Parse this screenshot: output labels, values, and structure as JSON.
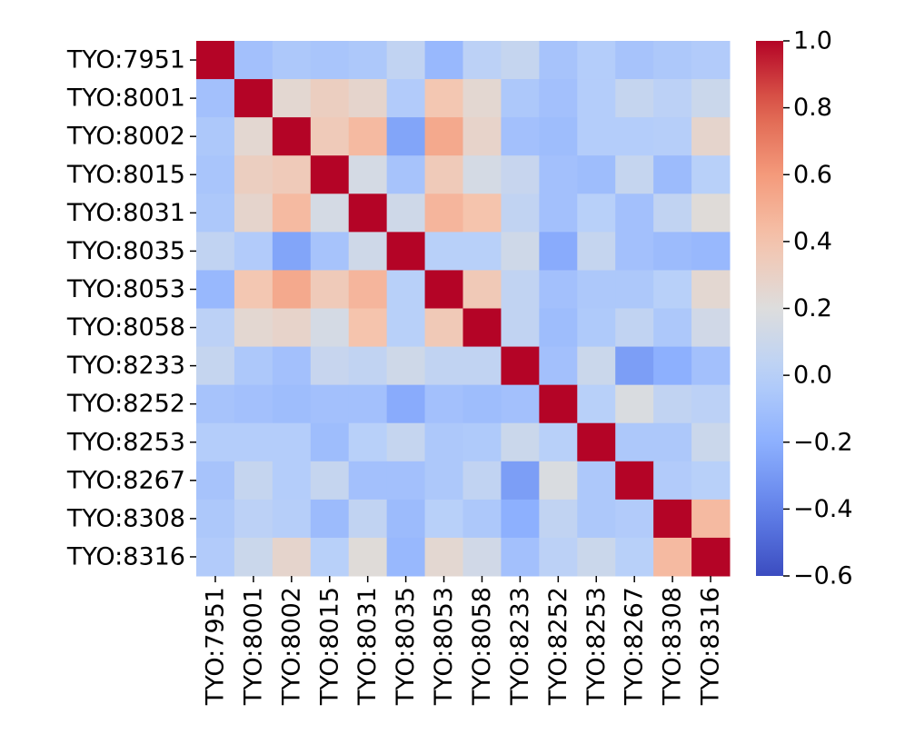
{
  "chart_data": {
    "type": "heatmap",
    "title": "",
    "xlabel": "",
    "ylabel": "",
    "categories_x": [
      "TYO:7951",
      "TYO:8001",
      "TYO:8002",
      "TYO:8015",
      "TYO:8031",
      "TYO:8035",
      "TYO:8053",
      "TYO:8058",
      "TYO:8233",
      "TYO:8252",
      "TYO:8253",
      "TYO:8267",
      "TYO:8308",
      "TYO:8316"
    ],
    "categories_y": [
      "TYO:7951",
      "TYO:8001",
      "TYO:8002",
      "TYO:8015",
      "TYO:8031",
      "TYO:8035",
      "TYO:8053",
      "TYO:8058",
      "TYO:8233",
      "TYO:8252",
      "TYO:8253",
      "TYO:8267",
      "TYO:8308",
      "TYO:8316"
    ],
    "values": [
      [
        1.0,
        -0.1,
        -0.05,
        -0.07,
        -0.05,
        0.05,
        -0.15,
        0.02,
        0.07,
        -0.08,
        -0.02,
        -0.08,
        -0.05,
        -0.03
      ],
      [
        -0.1,
        1.0,
        0.25,
        0.32,
        0.27,
        -0.03,
        0.38,
        0.25,
        -0.05,
        -0.1,
        -0.02,
        0.07,
        0.02,
        0.1
      ],
      [
        -0.05,
        0.25,
        1.0,
        0.35,
        0.45,
        -0.25,
        0.53,
        0.28,
        -0.1,
        -0.12,
        -0.02,
        -0.02,
        -0.01,
        0.27
      ],
      [
        -0.07,
        0.32,
        0.35,
        1.0,
        0.15,
        -0.08,
        0.35,
        0.15,
        0.08,
        -0.1,
        -0.12,
        0.07,
        -0.13,
        0.0
      ],
      [
        -0.05,
        0.27,
        0.45,
        0.15,
        1.0,
        0.12,
        0.47,
        0.4,
        0.05,
        -0.1,
        0.0,
        -0.1,
        0.05,
        0.22
      ],
      [
        0.05,
        -0.03,
        -0.25,
        -0.08,
        0.12,
        1.0,
        0.0,
        0.0,
        0.12,
        -0.22,
        0.07,
        -0.1,
        -0.13,
        -0.15
      ],
      [
        -0.15,
        0.38,
        0.53,
        0.35,
        0.47,
        0.0,
        1.0,
        0.36,
        0.05,
        -0.1,
        -0.05,
        -0.05,
        0.0,
        0.25
      ],
      [
        0.02,
        0.25,
        0.28,
        0.15,
        0.4,
        0.0,
        0.36,
        1.0,
        0.05,
        -0.12,
        -0.04,
        0.05,
        -0.05,
        0.13
      ],
      [
        0.07,
        -0.05,
        -0.1,
        0.08,
        0.05,
        0.12,
        0.05,
        0.05,
        1.0,
        -0.1,
        0.1,
        -0.28,
        -0.2,
        -0.1
      ],
      [
        -0.08,
        -0.1,
        -0.12,
        -0.1,
        -0.1,
        -0.22,
        -0.1,
        -0.12,
        -0.1,
        1.0,
        0.0,
        0.18,
        0.05,
        0.02
      ],
      [
        -0.02,
        -0.02,
        -0.02,
        -0.12,
        0.0,
        0.07,
        -0.05,
        -0.04,
        0.1,
        0.0,
        1.0,
        -0.05,
        -0.05,
        0.1
      ],
      [
        -0.08,
        0.07,
        -0.02,
        0.07,
        -0.1,
        -0.1,
        -0.05,
        0.05,
        -0.28,
        0.18,
        -0.05,
        1.0,
        -0.03,
        0.0
      ],
      [
        -0.05,
        0.02,
        -0.01,
        -0.13,
        0.05,
        -0.13,
        0.0,
        -0.05,
        -0.2,
        0.05,
        -0.05,
        -0.03,
        1.0,
        0.45
      ],
      [
        -0.03,
        0.1,
        0.27,
        0.0,
        0.22,
        -0.15,
        0.25,
        0.13,
        -0.1,
        0.02,
        0.1,
        0.0,
        0.45,
        1.0
      ]
    ],
    "colormap": "coolwarm",
    "color_low": "#3b4cc0",
    "color_mid": "#dddddd",
    "color_high": "#b40426",
    "vmin": -0.6,
    "vmax": 1.0,
    "colorbar_ticks": [
      1.0,
      0.8,
      0.6,
      0.4,
      0.2,
      0.0,
      -0.2,
      -0.4,
      -0.6
    ],
    "colorbar_tick_labels": [
      "1.0",
      "0.8",
      "0.6",
      "0.4",
      "0.2",
      "0.0",
      "−0.2",
      "−0.4",
      "−0.6"
    ],
    "grid": false,
    "legend": "colorbar-right"
  }
}
